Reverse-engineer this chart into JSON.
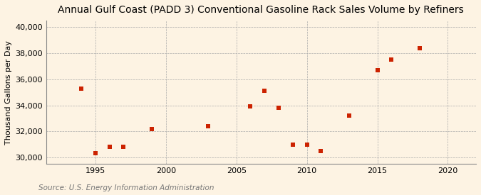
{
  "title": "Annual Gulf Coast (PADD 3) Conventional Gasoline Rack Sales Volume by Refiners",
  "ylabel": "Thousand Gallons per Day",
  "source": "Source: U.S. Energy Information Administration",
  "background_color": "#fdf3e3",
  "marker_color": "#cc2200",
  "ylim": [
    29500,
    40500
  ],
  "yticks": [
    30000,
    32000,
    34000,
    36000,
    38000,
    40000
  ],
  "xlim": [
    1991.5,
    2022
  ],
  "xticks": [
    1995,
    2000,
    2005,
    2010,
    2015,
    2020
  ],
  "years": [
    1994,
    1995,
    1996,
    1997,
    1999,
    2003,
    2006,
    2007,
    2008,
    2009,
    2010,
    2011,
    2013,
    2015,
    2016,
    2018
  ],
  "values": [
    35300,
    30300,
    30800,
    30800,
    32200,
    32400,
    33900,
    35100,
    33800,
    31000,
    31000,
    30500,
    33200,
    36700,
    37500,
    38400
  ],
  "title_fontsize": 10,
  "tick_fontsize": 8,
  "ylabel_fontsize": 8,
  "source_fontsize": 7.5,
  "marker_size": 22
}
